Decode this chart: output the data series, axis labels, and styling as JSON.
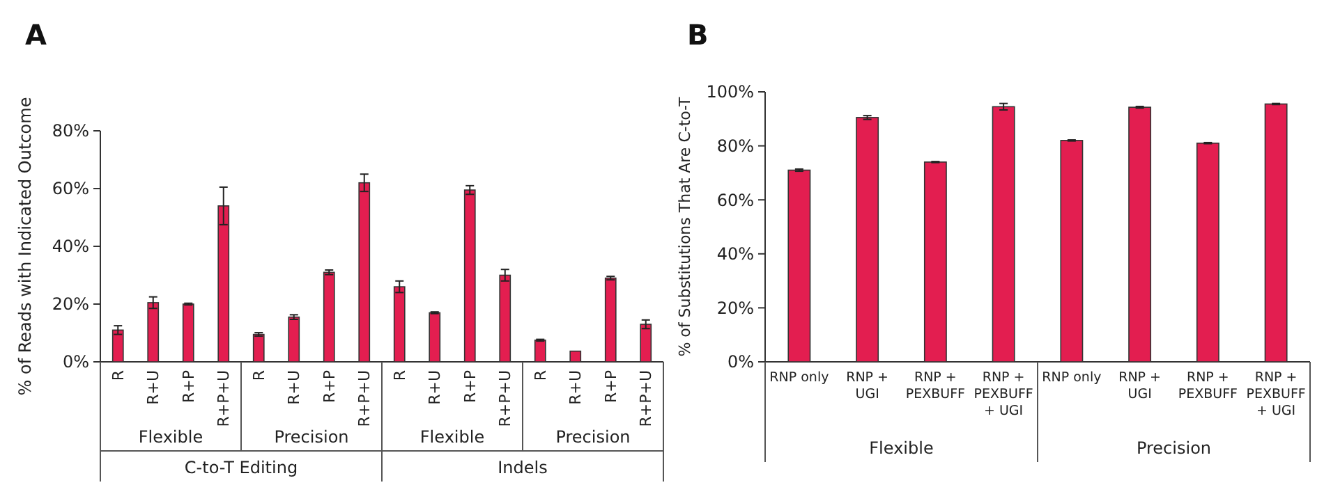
{
  "chart_data": [
    {
      "type": "bar",
      "title": "A",
      "ylabel": "% of Reads with Indicated Outcome",
      "categories": [
        "R",
        "R+U",
        "R+P",
        "R+P+U",
        "R",
        "R+U",
        "R+P",
        "R+P+U",
        "R",
        "R+U",
        "R+P",
        "R+P+U",
        "R",
        "R+U",
        "R+P",
        "R+P+U"
      ],
      "values": [
        11,
        20.5,
        20,
        54,
        9.5,
        15.5,
        31,
        62,
        26,
        17,
        59.5,
        30,
        7.5,
        3.7,
        29,
        13
      ],
      "errors": [
        1.5,
        2,
        0.3,
        6.5,
        0.6,
        0.8,
        0.8,
        3,
        2,
        0.3,
        1.5,
        2,
        0.3,
        null,
        0.6,
        1.5
      ],
      "color": "#e31e50",
      "ylim": [
        0,
        80
      ],
      "yticks": [
        {
          "value": 0,
          "label": "0%"
        },
        {
          "value": 20,
          "label": "20%"
        },
        {
          "value": 40,
          "label": "40%"
        },
        {
          "value": 60,
          "label": "60%"
        },
        {
          "value": 80,
          "label": "80%"
        }
      ],
      "annotations": [
        "Flexible",
        "Precision",
        "Flexible",
        "Precision",
        "C-to-T Editing",
        "Indels"
      ]
    },
    {
      "type": "bar",
      "title": "B",
      "ylabel": "% of Substitutions That Are C-to-T",
      "categories": [
        "RNP only",
        "RNP + UGI",
        "RNP + PEXBUFF",
        "RNP + PEXBUFF + UGI",
        "RNP only",
        "RNP + UGI",
        "RNP + PEXBUFF",
        "RNP + PEXBUFF + UGI"
      ],
      "values": [
        71,
        90.5,
        74,
        94.5,
        82,
        94.3,
        81,
        95.5
      ],
      "errors": [
        0.4,
        0.7,
        0.2,
        1.2,
        0.2,
        0.3,
        0.2,
        0.2
      ],
      "color": "#e31e50",
      "ylim": [
        0,
        100
      ],
      "yticks": [
        {
          "value": 0,
          "label": "0%"
        },
        {
          "value": 20,
          "label": "20%"
        },
        {
          "value": 40,
          "label": "40%"
        },
        {
          "value": 60,
          "label": "60%"
        },
        {
          "value": 80,
          "label": "80%"
        },
        {
          "value": 100,
          "label": "100%"
        }
      ],
      "annotations": [
        "Flexible",
        "Precision"
      ]
    }
  ]
}
